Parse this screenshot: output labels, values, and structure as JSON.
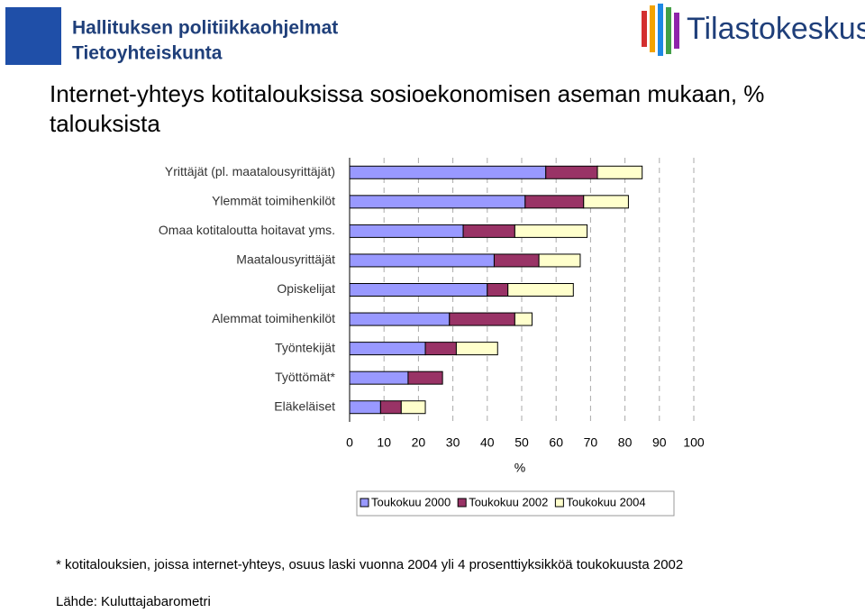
{
  "header": {
    "left_title": "Hallituksen politiikkaohjelmat",
    "left_subtitle": "Tietoyhteiskunta",
    "right_logo": "Tilastokeskus"
  },
  "chart_data": {
    "type": "stacked-bar-horizontal",
    "title": "Internet-yhteys kotitalouksissa sosioekonomisen aseman mukaan, % talouksista",
    "x_label": "%",
    "categories": [
      "Yrittäjät (pl. maatalousyrittäjät)",
      "Ylemmät toimihenkilöt",
      "Omaa kotitaloutta hoitavat yms.",
      "Maatalousyrittäjät",
      "Opiskelijat",
      "Alemmat toimihenkilöt",
      "Työntekijät",
      "Työttömät*",
      "Eläkeläiset"
    ],
    "series": [
      {
        "name": "Toukokuu 2000",
        "color": "#9999ff",
        "values": [
          57,
          51,
          33,
          42,
          40,
          29,
          22,
          17,
          9
        ]
      },
      {
        "name": "Toukokuu 2002",
        "color": "#993366",
        "values": [
          15,
          17,
          15,
          13,
          6,
          19,
          9,
          10,
          6
        ]
      },
      {
        "name": "Toukokuu 2004",
        "color": "#ffffcc",
        "values": [
          13,
          13,
          21,
          12,
          19,
          5,
          12,
          null,
          7
        ]
      }
    ],
    "xlim": [
      0,
      100
    ],
    "xticks": [
      0,
      10,
      20,
      30,
      40,
      50,
      60,
      70,
      80,
      90,
      100
    ],
    "grid": true
  },
  "footnote": "* kotitalouksien, joissa internet-yhteys, osuus laski vuonna 2004 yli 4 prosenttiyksikköä toukokuusta 2002",
  "source": "Lähde: Kuluttajabarometri"
}
